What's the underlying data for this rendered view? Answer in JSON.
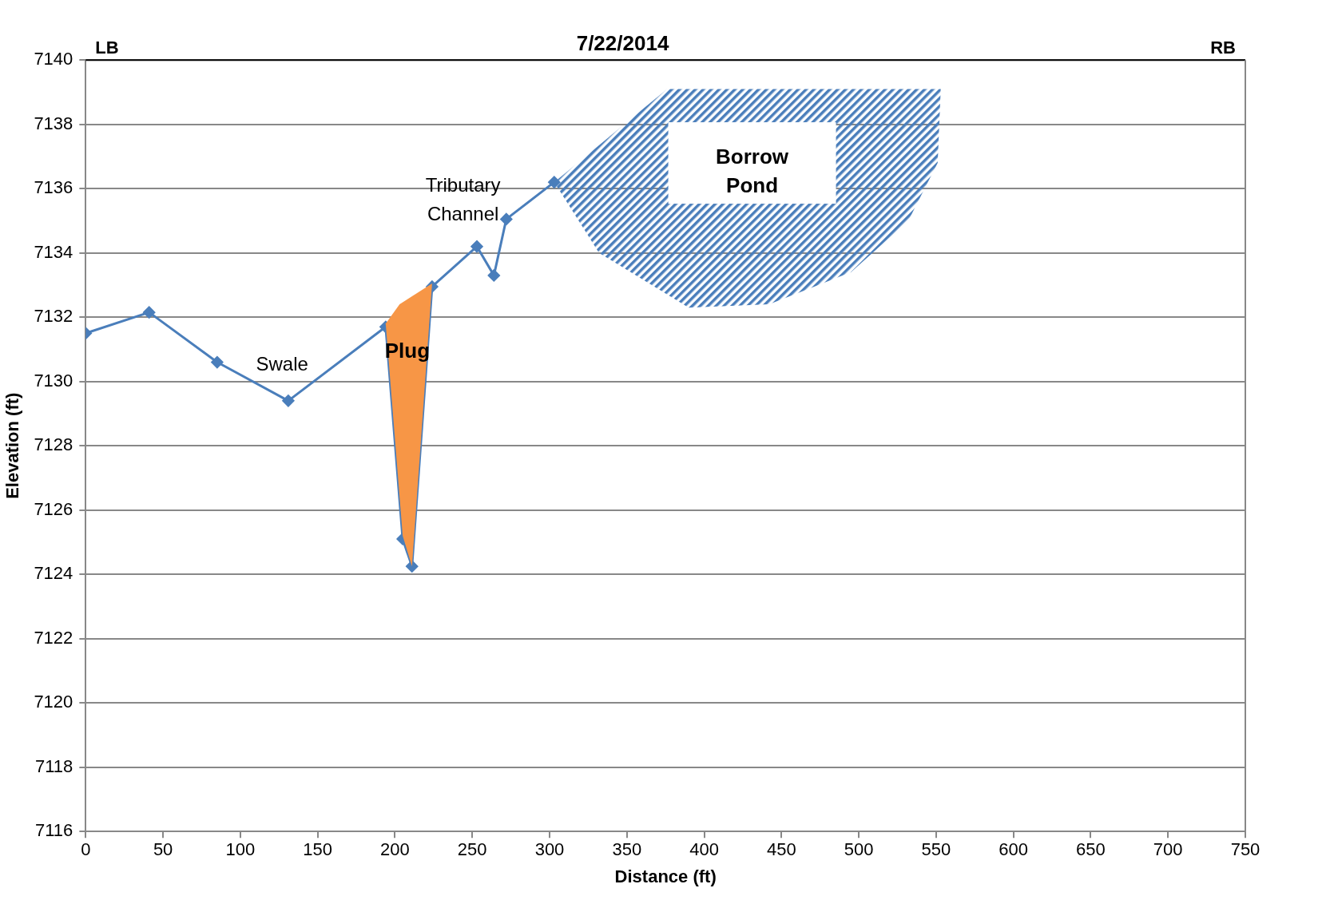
{
  "chart_data": {
    "type": "line",
    "title": "7/22/2014",
    "xlabel": "Distance (ft)",
    "ylabel": "Elevation (ft)",
    "x": [
      0,
      41,
      85,
      131,
      194,
      205,
      211,
      224,
      253,
      264,
      272,
      303
    ],
    "series": [
      {
        "color": "#4a7ebb",
        "values": [
          7131.5,
          7132.15,
          7130.6,
          7129.4,
          7131.7,
          7125.1,
          7124.25,
          7132.95,
          7134.2,
          7133.3,
          7135.05,
          7136.2
        ]
      }
    ],
    "xlim": [
      0,
      750
    ],
    "xticks": [
      0,
      50,
      100,
      150,
      200,
      250,
      300,
      350,
      400,
      450,
      500,
      550,
      600,
      650,
      700,
      750
    ],
    "ylim": [
      7116,
      7140
    ],
    "yticks": [
      7116,
      7118,
      7120,
      7122,
      7124,
      7126,
      7128,
      7130,
      7132,
      7134,
      7136,
      7138,
      7140
    ],
    "grid": "y",
    "legend": false,
    "marker": "diamond",
    "line_style": "solid",
    "annotations": [
      "LB",
      "RB",
      "Swale",
      "Plug",
      "Tributary Channel",
      "Borrow Pond"
    ]
  }
}
